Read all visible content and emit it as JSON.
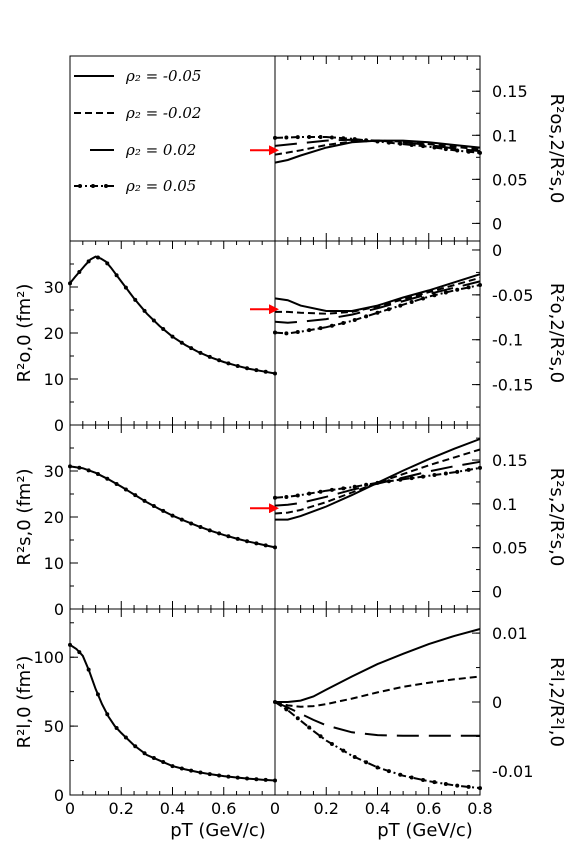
{
  "legend": [
    {
      "label": "ρ₂ = -0.05",
      "dash": "solid"
    },
    {
      "label": "ρ₂ = -0.02",
      "dash": "dashed"
    },
    {
      "label": "ρ₂ = 0.02",
      "dash": "longdash"
    },
    {
      "label": "ρ₂ = 0.05",
      "dash": "dashdot"
    }
  ],
  "chart_data": [
    {
      "id": "Rs2_os2_ratio",
      "type": "line",
      "panel": "right-row1",
      "ylabel": "R²os,2/R²s,0",
      "ylim": [
        -0.02,
        0.19
      ],
      "yticks": [
        0,
        0.05,
        0.1,
        0.15
      ],
      "ytick_labels": [
        "0",
        "0.05",
        "0.1",
        "0.15"
      ],
      "xlim": [
        0,
        0.8
      ],
      "arrow_at": 0.083,
      "series": [
        {
          "dash": "solid",
          "x": [
            0,
            0.05,
            0.1,
            0.2,
            0.3,
            0.4,
            0.5,
            0.6,
            0.7,
            0.8
          ],
          "values": [
            0.069,
            0.072,
            0.077,
            0.086,
            0.092,
            0.094,
            0.094,
            0.092,
            0.089,
            0.086
          ]
        },
        {
          "dash": "dashed",
          "x": [
            0,
            0.1,
            0.2,
            0.3,
            0.4,
            0.5,
            0.6,
            0.7,
            0.8
          ],
          "values": [
            0.078,
            0.083,
            0.089,
            0.093,
            0.094,
            0.093,
            0.09,
            0.087,
            0.084
          ]
        },
        {
          "dash": "longdash",
          "x": [
            0,
            0.1,
            0.2,
            0.3,
            0.4,
            0.5,
            0.6,
            0.7,
            0.8
          ],
          "values": [
            0.088,
            0.091,
            0.094,
            0.095,
            0.094,
            0.092,
            0.089,
            0.085,
            0.082
          ]
        },
        {
          "dash": "dashdot",
          "x": [
            0,
            0.1,
            0.2,
            0.3,
            0.4,
            0.5,
            0.6,
            0.7,
            0.8
          ],
          "values": [
            0.097,
            0.098,
            0.098,
            0.096,
            0.093,
            0.09,
            0.087,
            0.083,
            0.08
          ]
        }
      ]
    },
    {
      "id": "Ro00",
      "type": "line",
      "panel": "left-row2",
      "ylabel": "R²o,0 (fm²)",
      "ylim": [
        0,
        40
      ],
      "yticks": [
        0,
        10,
        20,
        30
      ],
      "ytick_labels": [
        "0",
        "10",
        "20",
        "30"
      ],
      "xlim": [
        0,
        0.8
      ],
      "series": [
        {
          "dash": "solid",
          "x": [
            0,
            0.02,
            0.04,
            0.06,
            0.08,
            0.1,
            0.12,
            0.14,
            0.16,
            0.2,
            0.25,
            0.3,
            0.35,
            0.4,
            0.45,
            0.5,
            0.55,
            0.6,
            0.65,
            0.7,
            0.75,
            0.8
          ],
          "values": [
            30.8,
            32.2,
            33.5,
            34.8,
            36.0,
            36.6,
            36.2,
            35.5,
            34.2,
            31.2,
            27.5,
            24.2,
            21.5,
            19.2,
            17.4,
            15.9,
            14.7,
            13.7,
            12.9,
            12.2,
            11.7,
            11.2
          ]
        },
        {
          "dash": "dotted-markers",
          "x": [
            0,
            0.02,
            0.04,
            0.06,
            0.08,
            0.1,
            0.12,
            0.14,
            0.16,
            0.2,
            0.25,
            0.3,
            0.35,
            0.4,
            0.45,
            0.5,
            0.55,
            0.6,
            0.65,
            0.7,
            0.75,
            0.8
          ],
          "values": [
            30.8,
            32.2,
            33.5,
            34.8,
            36.0,
            36.6,
            36.2,
            35.5,
            34.2,
            31.2,
            27.5,
            24.2,
            21.5,
            19.2,
            17.4,
            15.9,
            14.7,
            13.7,
            12.9,
            12.2,
            11.7,
            11.2
          ]
        }
      ]
    },
    {
      "id": "Ro2_ratio",
      "type": "line",
      "panel": "right-row2",
      "ylabel": "R²o,2/R²s,0",
      "ylim": [
        -0.195,
        0.01
      ],
      "yticks": [
        0,
        -0.05,
        -0.1,
        -0.15
      ],
      "ytick_labels": [
        "0",
        "-0.05",
        "-0.1",
        "-0.15"
      ],
      "xlim": [
        0,
        0.8
      ],
      "arrow_at": -0.066,
      "series": [
        {
          "dash": "solid",
          "x": [
            0,
            0.05,
            0.1,
            0.2,
            0.3,
            0.4,
            0.5,
            0.6,
            0.7,
            0.8
          ],
          "values": [
            -0.054,
            -0.056,
            -0.062,
            -0.068,
            -0.068,
            -0.062,
            -0.053,
            -0.045,
            -0.036,
            -0.027
          ]
        },
        {
          "dash": "dashed",
          "x": [
            0,
            0.05,
            0.1,
            0.2,
            0.3,
            0.4,
            0.5,
            0.6,
            0.7,
            0.8
          ],
          "values": [
            -0.069,
            -0.069,
            -0.07,
            -0.071,
            -0.069,
            -0.063,
            -0.055,
            -0.047,
            -0.039,
            -0.031
          ]
        },
        {
          "dash": "longdash",
          "x": [
            0,
            0.05,
            0.1,
            0.2,
            0.3,
            0.4,
            0.5,
            0.6,
            0.7,
            0.8
          ],
          "values": [
            -0.08,
            -0.081,
            -0.08,
            -0.077,
            -0.072,
            -0.065,
            -0.057,
            -0.049,
            -0.042,
            -0.035
          ]
        },
        {
          "dash": "dashdot",
          "x": [
            0,
            0.05,
            0.1,
            0.2,
            0.3,
            0.4,
            0.5,
            0.6,
            0.7,
            0.8
          ],
          "values": [
            -0.092,
            -0.093,
            -0.091,
            -0.086,
            -0.079,
            -0.07,
            -0.061,
            -0.052,
            -0.045,
            -0.039
          ]
        }
      ]
    },
    {
      "id": "Rs00",
      "type": "line",
      "panel": "left-row3",
      "ylabel": "R²s,0 (fm²)",
      "ylim": [
        0,
        40
      ],
      "yticks": [
        0,
        10,
        20,
        30
      ],
      "ytick_labels": [
        "0",
        "10",
        "20",
        "30"
      ],
      "xlim": [
        0,
        0.8
      ],
      "series": [
        {
          "dash": "solid",
          "x": [
            0,
            0.05,
            0.1,
            0.15,
            0.2,
            0.25,
            0.3,
            0.35,
            0.4,
            0.45,
            0.5,
            0.55,
            0.6,
            0.65,
            0.7,
            0.75,
            0.8
          ],
          "values": [
            31.0,
            30.6,
            29.6,
            28.2,
            26.6,
            24.9,
            23.2,
            21.7,
            20.3,
            19.1,
            18.0,
            17.0,
            16.1,
            15.3,
            14.6,
            14.0,
            13.4
          ]
        },
        {
          "dash": "dotted-markers",
          "x": [
            0,
            0.05,
            0.1,
            0.15,
            0.2,
            0.25,
            0.3,
            0.35,
            0.4,
            0.45,
            0.5,
            0.55,
            0.6,
            0.65,
            0.7,
            0.75,
            0.8
          ],
          "values": [
            31.0,
            30.6,
            29.6,
            28.2,
            26.6,
            24.9,
            23.2,
            21.7,
            20.3,
            19.1,
            18.0,
            17.0,
            16.1,
            15.3,
            14.6,
            14.0,
            13.4
          ]
        }
      ]
    },
    {
      "id": "Rs2_ratio",
      "type": "line",
      "panel": "right-row3",
      "ylabel": "R²s,2/R²s,0",
      "ylim": [
        -0.02,
        0.19
      ],
      "yticks": [
        0,
        0.05,
        0.1,
        0.15
      ],
      "ytick_labels": [
        "0",
        "0.05",
        "0.1",
        "0.15"
      ],
      "xlim": [
        0,
        0.8
      ],
      "arrow_at": 0.095,
      "series": [
        {
          "dash": "solid",
          "x": [
            0,
            0.05,
            0.1,
            0.2,
            0.3,
            0.4,
            0.5,
            0.6,
            0.7,
            0.8
          ],
          "values": [
            0.082,
            0.082,
            0.086,
            0.097,
            0.11,
            0.124,
            0.138,
            0.151,
            0.163,
            0.174
          ]
        },
        {
          "dash": "dashed",
          "x": [
            0,
            0.05,
            0.1,
            0.2,
            0.3,
            0.4,
            0.5,
            0.6,
            0.7,
            0.8
          ],
          "values": [
            0.089,
            0.09,
            0.093,
            0.102,
            0.113,
            0.124,
            0.134,
            0.144,
            0.153,
            0.162
          ]
        },
        {
          "dash": "longdash",
          "x": [
            0,
            0.05,
            0.1,
            0.2,
            0.3,
            0.4,
            0.5,
            0.6,
            0.7,
            0.8
          ],
          "values": [
            0.098,
            0.099,
            0.101,
            0.108,
            0.116,
            0.123,
            0.13,
            0.137,
            0.143,
            0.148
          ]
        },
        {
          "dash": "dashdot",
          "x": [
            0,
            0.05,
            0.1,
            0.2,
            0.3,
            0.4,
            0.5,
            0.6,
            0.7,
            0.8
          ],
          "values": [
            0.107,
            0.108,
            0.11,
            0.115,
            0.119,
            0.124,
            0.128,
            0.132,
            0.136,
            0.141
          ]
        }
      ]
    },
    {
      "id": "Rl00",
      "type": "line",
      "panel": "left-row4",
      "ylabel": "R²l,0 (fm²)",
      "ylim": [
        0,
        135
      ],
      "yticks": [
        0,
        50,
        100
      ],
      "ytick_labels": [
        "0",
        "50",
        "100"
      ],
      "xlabel": "pT (GeV/c)",
      "xlim": [
        0,
        0.8
      ],
      "xticks": [
        0,
        0.2,
        0.4,
        0.6
      ],
      "xtick_labels": [
        "0",
        "0.2",
        "0.4",
        "0.6"
      ],
      "series": [
        {
          "dash": "solid",
          "x": [
            0,
            0.025,
            0.05,
            0.075,
            0.1,
            0.125,
            0.15,
            0.175,
            0.2,
            0.25,
            0.3,
            0.35,
            0.4,
            0.45,
            0.5,
            0.55,
            0.6,
            0.65,
            0.7,
            0.75,
            0.8
          ],
          "values": [
            109,
            106,
            101,
            90,
            77,
            66,
            57,
            50,
            45,
            36,
            29,
            25,
            21,
            18.6,
            16.6,
            15.0,
            13.7,
            12.7,
            11.8,
            11.1,
            10.5
          ]
        },
        {
          "dash": "dotted-markers",
          "x": [
            0,
            0.025,
            0.05,
            0.075,
            0.1,
            0.125,
            0.15,
            0.175,
            0.2,
            0.25,
            0.3,
            0.35,
            0.4,
            0.45,
            0.5,
            0.55,
            0.6,
            0.65,
            0.7,
            0.75,
            0.8
          ],
          "values": [
            109,
            106,
            101,
            90,
            77,
            66,
            57,
            50,
            45,
            36,
            29,
            25,
            21,
            18.6,
            16.6,
            15.0,
            13.7,
            12.7,
            11.8,
            11.1,
            10.5
          ]
        }
      ]
    },
    {
      "id": "Rl2_ratio",
      "type": "line",
      "panel": "right-row4",
      "ylabel": "R²l,2/R²l,0",
      "ylim": [
        -0.0135,
        0.0135
      ],
      "yticks": [
        0.01,
        0,
        -0.01
      ],
      "ytick_labels": [
        "0.01",
        "0",
        "-0.01"
      ],
      "xlabel": "pT (GeV/c)",
      "xlim": [
        0,
        0.8
      ],
      "xticks": [
        0,
        0.2,
        0.4,
        0.6,
        0.8
      ],
      "xtick_labels": [
        "0",
        "0.2",
        "0.4",
        "0.6",
        "0.8"
      ],
      "series": [
        {
          "dash": "solid",
          "x": [
            0,
            0.05,
            0.1,
            0.15,
            0.2,
            0.3,
            0.4,
            0.5,
            0.6,
            0.7,
            0.8
          ],
          "values": [
            0,
            0,
            0.0002,
            0.0008,
            0.0018,
            0.0037,
            0.0055,
            0.007,
            0.0084,
            0.0096,
            0.0106
          ]
        },
        {
          "dash": "dashed",
          "x": [
            0,
            0.05,
            0.1,
            0.15,
            0.2,
            0.3,
            0.4,
            0.5,
            0.6,
            0.7,
            0.8
          ],
          "values": [
            0,
            -0.0005,
            -0.0007,
            -0.0006,
            -0.0003,
            0.0005,
            0.0014,
            0.0022,
            0.0028,
            0.0033,
            0.0037
          ]
        },
        {
          "dash": "longdash",
          "x": [
            0,
            0.05,
            0.1,
            0.15,
            0.2,
            0.3,
            0.4,
            0.5,
            0.6,
            0.7,
            0.8
          ],
          "values": [
            0,
            -0.0008,
            -0.0017,
            -0.0026,
            -0.0034,
            -0.0044,
            -0.0048,
            -0.0049,
            -0.0049,
            -0.0049,
            -0.0049
          ]
        },
        {
          "dash": "dashdot",
          "x": [
            0,
            0.05,
            0.1,
            0.15,
            0.2,
            0.3,
            0.4,
            0.5,
            0.6,
            0.7,
            0.8
          ],
          "values": [
            0,
            -0.0012,
            -0.0027,
            -0.0042,
            -0.0056,
            -0.0078,
            -0.0095,
            -0.0107,
            -0.0115,
            -0.0121,
            -0.0125
          ]
        }
      ]
    }
  ],
  "colors": {
    "line": "#000000",
    "arrow": "#ff0000",
    "frame": "#000000"
  }
}
